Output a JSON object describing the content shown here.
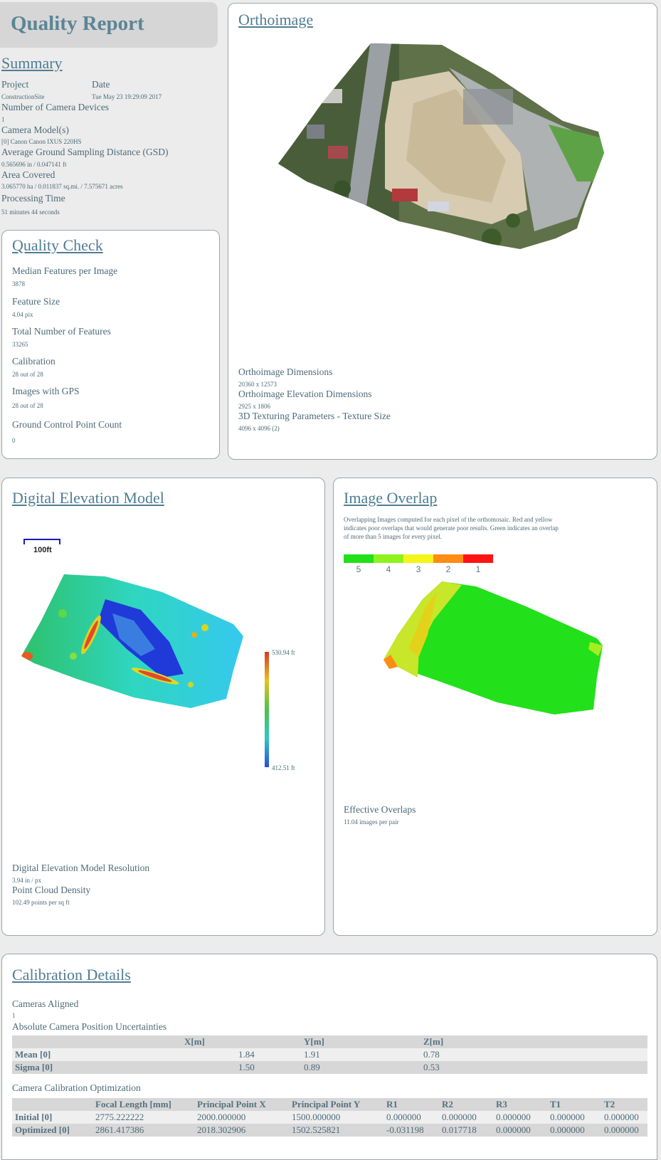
{
  "title": "Quality Report",
  "summary": {
    "heading": "Summary",
    "project_label": "Project",
    "project_value": "ConstructionSite",
    "date_label": "Date",
    "date_value": "Tue May 23 19:29:09 2017",
    "cameras_label": "Number of Camera Devices",
    "cameras_value": "1",
    "model_label": "Camera Model(s)",
    "model_value": "[0] Canon Canon IXUS 220HS",
    "gsd_label": "Average Ground Sampling Distance (GSD)",
    "gsd_value": "0.565696 in / 0.047141 ft",
    "area_label": "Area Covered",
    "area_value": "3.065770 ha / 0.011837 sq.mi. / 7.575671 acres",
    "time_label": "Processing Time",
    "time_value": "51 minutes 44 seconds"
  },
  "quality_check": {
    "heading": "Quality Check",
    "items": [
      {
        "label": "Median Features per Image",
        "value": "3878"
      },
      {
        "label": "Feature Size",
        "value": "4.04 pix"
      },
      {
        "label": "Total Number of Features",
        "value": "33265"
      },
      {
        "label": "Calibration",
        "value": "28 out of  28"
      },
      {
        "label": "Images with GPS",
        "value": "28 out of  28"
      },
      {
        "label": "Ground Control Point Count",
        "value": "0"
      }
    ]
  },
  "orthoimage": {
    "heading": "Orthoimage",
    "dims_label": "Orthoimage Dimensions",
    "dims_value": "20360 x 12573",
    "elev_label": "Orthoimage Elevation Dimensions",
    "elev_value": "2925 x 1806",
    "tex_label": "3D Texturing Parameters - Texture Size",
    "tex_value": "4096 x 4096 (2)"
  },
  "dem": {
    "heading": "Digital Elevation Model",
    "scale_label": "100ft",
    "max_label": "530.94 ft",
    "min_label": "412.51 ft",
    "res_label": "Digital Elevation Model Resolution",
    "res_value": "3.94 in / px",
    "density_label": "Point Cloud Density",
    "density_value": "102.49 points per sq ft"
  },
  "overlap": {
    "heading": "Image Overlap",
    "desc": "Overlapping Images computed for each pixel of the orthomosaic. Red and yellow indicates poor overlaps that would generate poor results. Green indicates an overlap of more than 5 images for every pixel.",
    "legend": [
      {
        "label": "5",
        "color": "#22e01a"
      },
      {
        "label": "4",
        "color": "#8ef31c"
      },
      {
        "label": "3",
        "color": "#f5f51a"
      },
      {
        "label": "2",
        "color": "#ff8c14"
      },
      {
        "label": "1",
        "color": "#ff1414"
      }
    ],
    "eff_label": "Effective Overlaps",
    "eff_value": "11.04 images per pair"
  },
  "calibration": {
    "heading": "Calibration Details",
    "aligned_label": "Cameras Aligned",
    "aligned_value": "1",
    "abs_label": "Absolute Camera Position Uncertainties",
    "abs_headers": [
      "",
      "X[m]",
      "Y[m]",
      "Z[m]"
    ],
    "abs_rows": [
      [
        "Mean [0]",
        "1.84",
        "1.91",
        "0.78"
      ],
      [
        "Sigma [0]",
        "1.50",
        "0.89",
        "0.53"
      ]
    ],
    "opt_label": "Camera Calibration Optimization",
    "opt_headers": [
      "",
      "Focal Length [mm]",
      "Principal Point X",
      "Principal Point Y",
      "R1",
      "R2",
      "R3",
      "T1",
      "T2"
    ],
    "opt_rows": [
      [
        "Initial [0]",
        "2775.222222",
        "2000.000000",
        "1500.000000",
        "0.000000",
        "0.000000",
        "0.000000",
        "0.000000",
        "0.000000"
      ],
      [
        "Optimized [0]",
        "2861.417386",
        "2018.302906",
        "1502.525821",
        "-0.031198",
        "0.017718",
        "0.000000",
        "0.000000",
        "0.000000"
      ]
    ]
  }
}
